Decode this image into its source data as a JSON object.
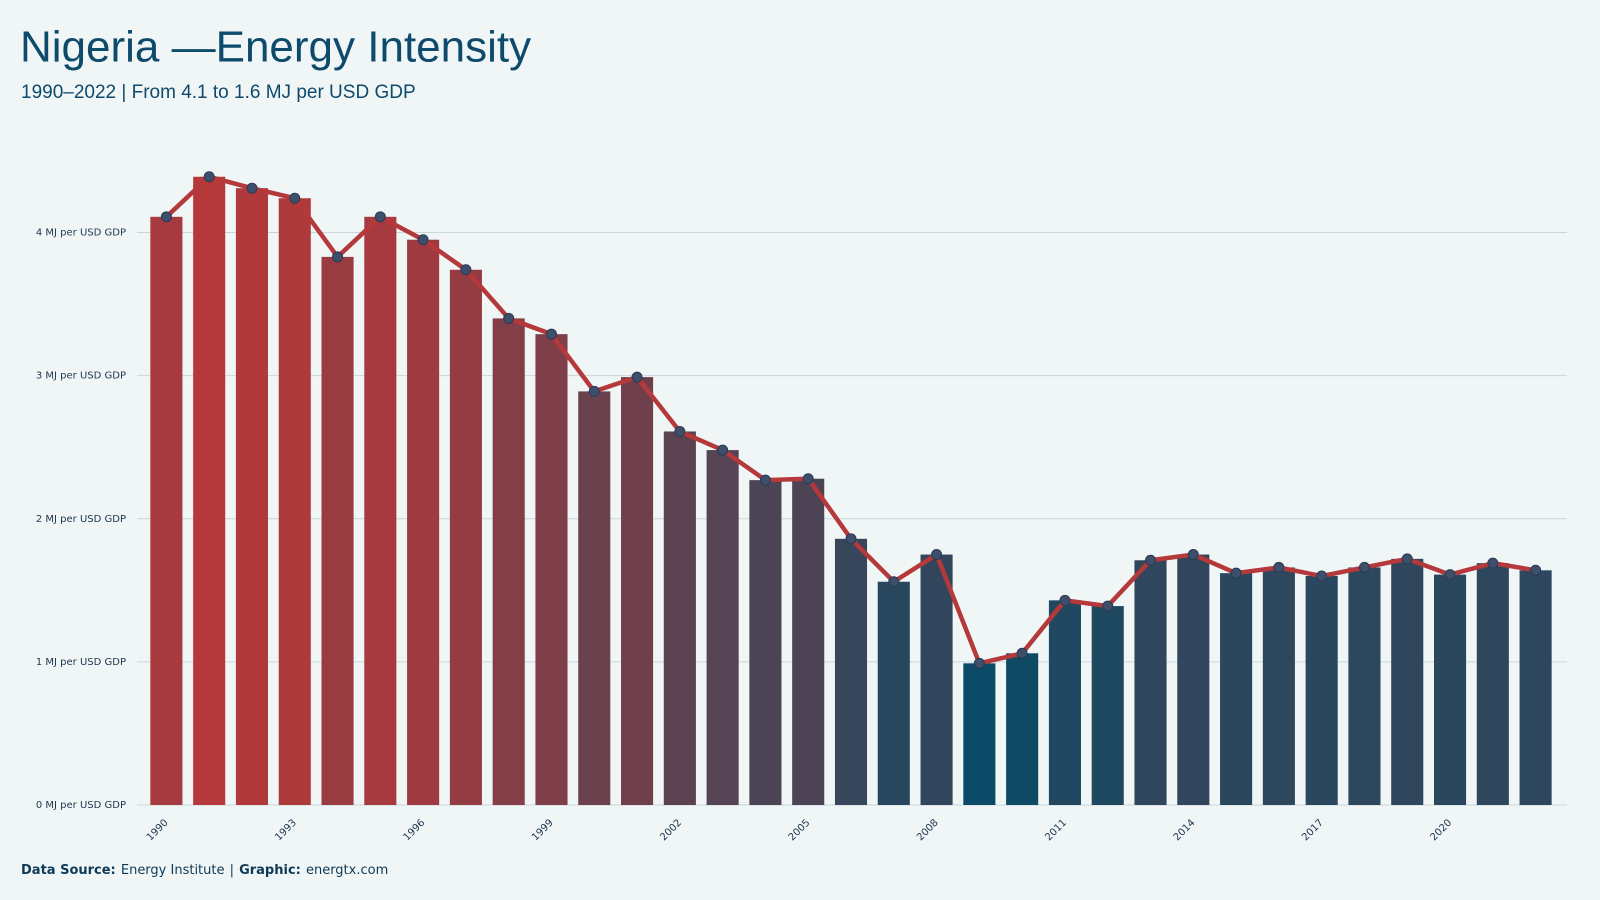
{
  "chart_data": {
    "type": "bar",
    "title": "Nigeria —Energy Intensity",
    "subtitle": "1990–2022 | From 4.1 to 1.6 MJ per USD GDP",
    "x": [
      1990,
      1991,
      1992,
      1993,
      1994,
      1995,
      1996,
      1997,
      1998,
      1999,
      2000,
      2001,
      2002,
      2003,
      2004,
      2005,
      2006,
      2007,
      2008,
      2009,
      2010,
      2011,
      2012,
      2013,
      2014,
      2015,
      2016,
      2017,
      2018,
      2019,
      2020,
      2021,
      2022
    ],
    "values": [
      4.11,
      4.39,
      4.31,
      4.24,
      3.83,
      4.11,
      3.95,
      3.74,
      3.4,
      3.29,
      2.89,
      2.99,
      2.61,
      2.48,
      2.27,
      2.28,
      1.86,
      1.56,
      1.75,
      0.99,
      1.06,
      1.43,
      1.39,
      1.71,
      1.75,
      1.62,
      1.66,
      1.6,
      1.66,
      1.72,
      1.61,
      1.69,
      1.64
    ],
    "xlim": [
      1989.5,
      2022.5
    ],
    "xticks": [
      1990,
      1993,
      1996,
      1999,
      2002,
      2005,
      2008,
      2011,
      2014,
      2017,
      2020
    ],
    "ylim": [
      0,
      4.5
    ],
    "yticks": [
      {
        "value": 0,
        "label": "0 MJ per USD GDP"
      },
      {
        "value": 1,
        "label": "1 MJ per USD GDP"
      },
      {
        "value": 2,
        "label": "2 MJ per USD GDP"
      },
      {
        "value": 3,
        "label": "3 MJ per USD GDP"
      },
      {
        "value": 4,
        "label": "4 MJ per USD GDP"
      }
    ],
    "grid": true,
    "colorscale": [
      "#0b4a66",
      "#b5393a"
    ],
    "line_color": "#b5393a",
    "marker_color": "#3d4f6b",
    "source": {
      "label": "Data Source:",
      "text": "Energy Institute"
    },
    "separator": "|",
    "graphic": {
      "label": "Graphic:",
      "text": "energtx.com"
    }
  }
}
